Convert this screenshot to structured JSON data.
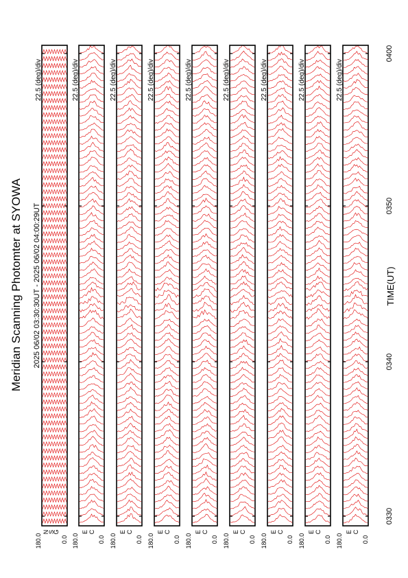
{
  "header": {
    "title": "Meridian Scanning Photomter at SYOWA",
    "time_range": "2025 06/02 03:30:30UT - 2025 06/02 04:00:29UT"
  },
  "x_axis": {
    "label": "TIME(UT)",
    "ticks": [
      "0330",
      "0340",
      "0350",
      "0400"
    ]
  },
  "panels": [
    {
      "scale": "22.5 (deg)/div",
      "y_top": "180.0",
      "y_bottom": "0.0",
      "side_labels": [
        "N",
        "S",
        "G"
      ]
    },
    {
      "scale": "22.5 (deg)/div",
      "y_top": "180.0",
      "y_bottom": "0.0",
      "side_labels": [
        "E",
        "C"
      ]
    },
    {
      "scale": "22.5 (deg)/div",
      "y_top": "180.0",
      "y_bottom": "0.0",
      "side_labels": [
        "E",
        "C"
      ]
    },
    {
      "scale": "22.5 (deg)/div",
      "y_top": "180.0",
      "y_bottom": "0.0",
      "side_labels": [
        "E",
        "C"
      ]
    },
    {
      "scale": "22.5 (deg)/div",
      "y_top": "180.0",
      "y_bottom": "0.0",
      "side_labels": [
        "E",
        "C"
      ]
    },
    {
      "scale": "22.5 (deg)/div",
      "y_top": "180.0",
      "y_bottom": "0.0",
      "side_labels": [
        "E",
        "C"
      ]
    },
    {
      "scale": "22.5 (deg)/div",
      "y_top": "180.0",
      "y_bottom": "0.0",
      "side_labels": [
        "E",
        "C"
      ]
    },
    {
      "scale": "22.5 (deg)/div",
      "y_top": "180.0",
      "y_bottom": "0.0",
      "side_labels": [
        "E",
        "C"
      ]
    },
    {
      "scale": "22.5 (deg)/div",
      "y_top": "180.0",
      "y_bottom": "0.0",
      "side_labels": [
        "E",
        "C"
      ]
    }
  ],
  "colors": {
    "trace": "#e00000",
    "frame": "#000000",
    "background": "#ffffff"
  },
  "chart_data": {
    "type": "line",
    "title": "Meridian Scanning Photomter at SYOWA",
    "xlabel": "TIME(UT)",
    "x_ticks": [
      "0330",
      "0340",
      "0350",
      "0400"
    ],
    "xlim": [
      "03:30:30",
      "04:00:29"
    ],
    "ylim": [
      0,
      180
    ],
    "y_scale": "22.5 (deg)/div",
    "panel_count": 9,
    "scans_per_panel": 68,
    "grid": false,
    "series_color": "#e00000"
  }
}
